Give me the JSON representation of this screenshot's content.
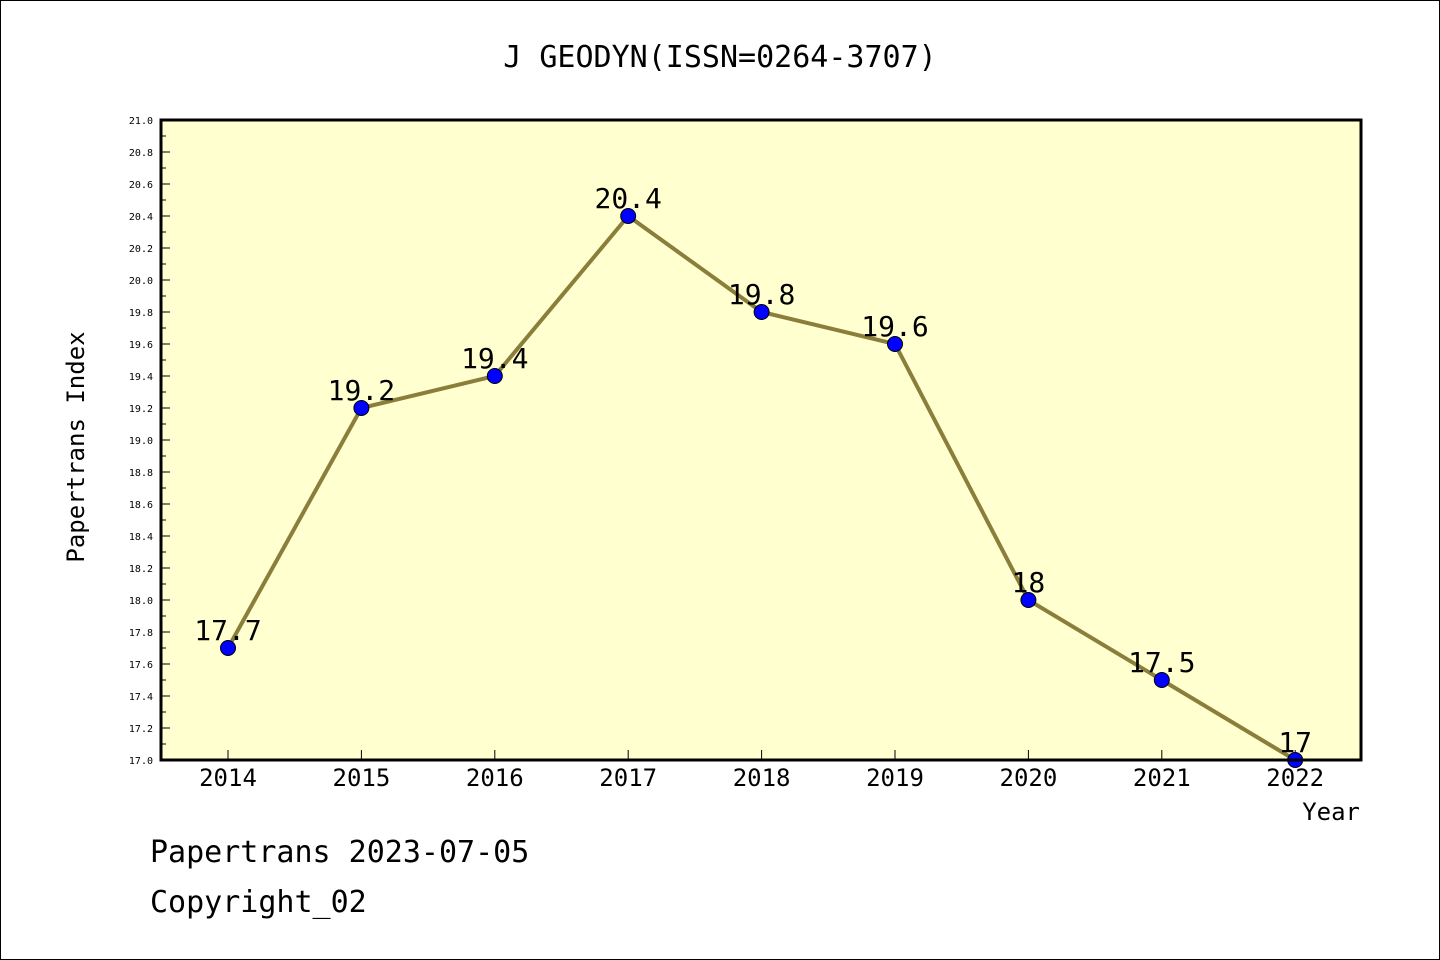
{
  "chart_data": {
    "type": "line",
    "title": "J GEODYN(ISSN=0264-3707)",
    "xlabel": "Year",
    "ylabel": "Papertrans Index",
    "categories": [
      "2014",
      "2015",
      "2016",
      "2017",
      "2018",
      "2019",
      "2020",
      "2021",
      "2022"
    ],
    "values": [
      17.7,
      19.2,
      19.4,
      20.4,
      19.8,
      19.6,
      18,
      17.5,
      17
    ],
    "data_labels": [
      "17.7",
      "19.2",
      "19.4",
      "20.4",
      "19.8",
      "19.6",
      "18",
      "17.5",
      "17"
    ],
    "ylim": [
      17.0,
      21.0
    ],
    "yticks": [
      "17.0",
      "17.2",
      "17.4",
      "17.6",
      "17.8",
      "18.0",
      "18.2",
      "18.4",
      "18.6",
      "18.8",
      "19.0",
      "19.2",
      "19.4",
      "19.6",
      "19.8",
      "20.0",
      "20.2",
      "20.4",
      "20.6",
      "20.8",
      "21.0"
    ],
    "grid": false,
    "colors": {
      "plot_background": "#ffffd0",
      "line": "#8b7d3a",
      "marker": "#0000ff"
    }
  },
  "footer": {
    "line1": "Papertrans 2023-07-05",
    "line2": "Copyright_02"
  }
}
